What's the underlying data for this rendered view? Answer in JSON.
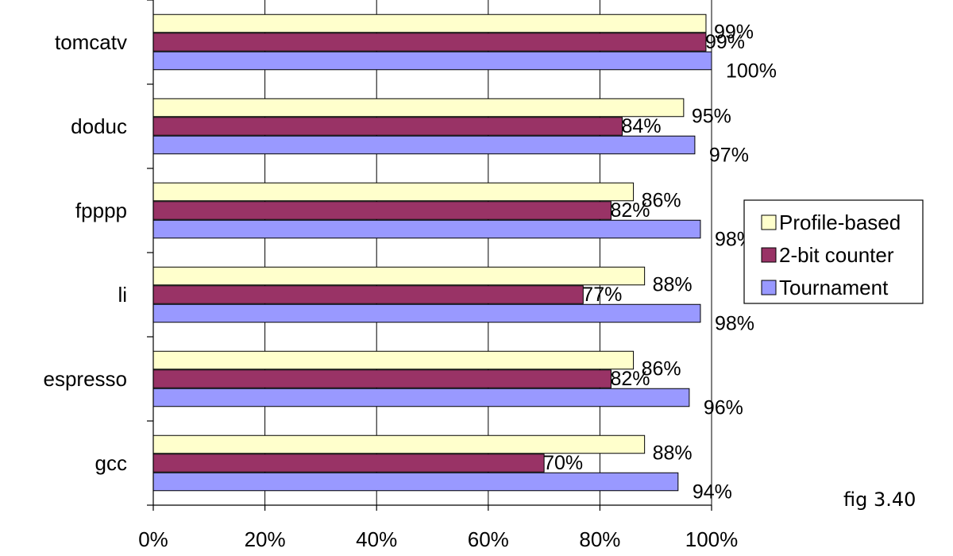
{
  "chart_data": {
    "type": "bar",
    "orientation": "horizontal",
    "categories": [
      "tomcatv",
      "doduc",
      "fpppp",
      "li",
      "espresso",
      "gcc"
    ],
    "series": [
      {
        "name": "Profile-based",
        "color": "#FFFFCC",
        "values": [
          99,
          95,
          86,
          88,
          86,
          88
        ],
        "labels": [
          "99%",
          "95%",
          "86%",
          "88%",
          "86%",
          "88%"
        ]
      },
      {
        "name": "2-bit counter",
        "color": "#993366",
        "values": [
          99,
          84,
          82,
          77,
          82,
          70
        ],
        "labels": [
          "99%",
          "84%",
          "82%",
          "77%",
          "82%",
          "70%"
        ]
      },
      {
        "name": "Tournament",
        "color": "#9999FF",
        "values": [
          100,
          97,
          98,
          98,
          96,
          94
        ],
        "labels": [
          "100%",
          "97%",
          "98%",
          "98%",
          "96%",
          "94%"
        ]
      }
    ],
    "xlim": [
      0,
      100
    ],
    "xticks": [
      "0%",
      "20%",
      "40%",
      "60%",
      "80%",
      "100%"
    ],
    "grid": "vertical gridlines",
    "legend_position": "right"
  },
  "figure_label": "fig 3.40"
}
